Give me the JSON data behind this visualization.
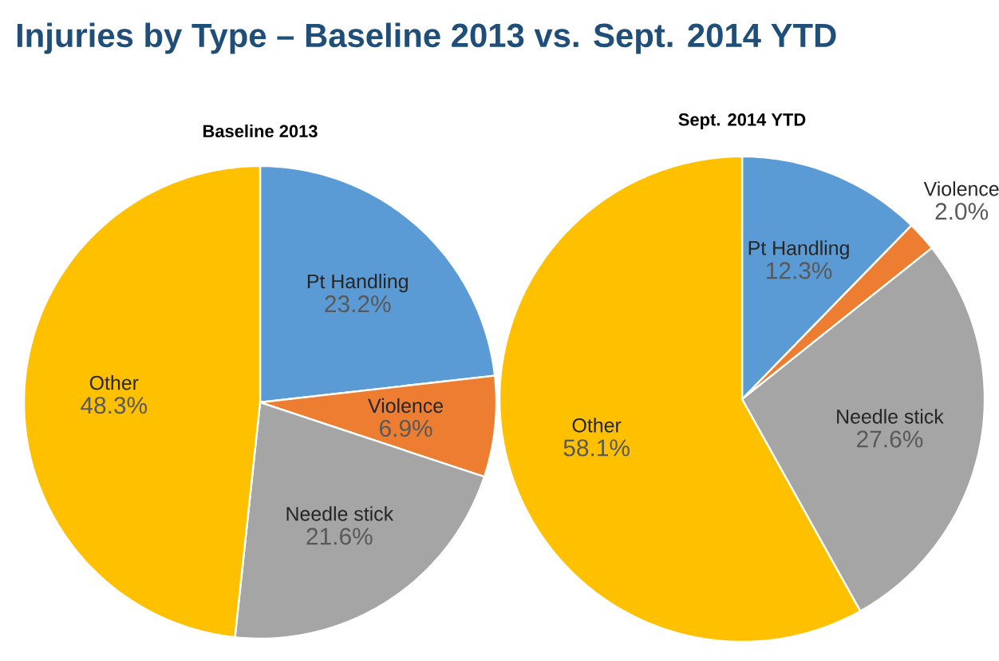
{
  "chart_data": [
    {
      "type": "other",
      "title": "Injuries by Type – Baseline 2013 vs. Sept. 2014 YTD"
    },
    {
      "type": "pie",
      "title": "Baseline 2013",
      "categories": [
        "Pt Handling",
        "Violence",
        "Needle stick",
        "Other"
      ],
      "values": [
        23.2,
        6.9,
        21.6,
        48.3
      ],
      "value_labels": [
        "23.2%",
        "6.9%",
        "21.6%",
        "48.3%"
      ],
      "colors": [
        "#5b9bd5",
        "#ed7d31",
        "#a5a5a5",
        "#ffc000"
      ]
    },
    {
      "type": "pie",
      "title": "Sept. 2014 YTD",
      "categories": [
        "Pt Handling",
        "Violence",
        "Needle stick",
        "Other"
      ],
      "values": [
        12.3,
        2.0,
        27.6,
        58.1
      ],
      "value_labels": [
        "12.3%",
        "2.0%",
        "27.6%",
        "58.1%"
      ],
      "colors": [
        "#5b9bd5",
        "#ed7d31",
        "#a5a5a5",
        "#ffc000"
      ]
    }
  ]
}
